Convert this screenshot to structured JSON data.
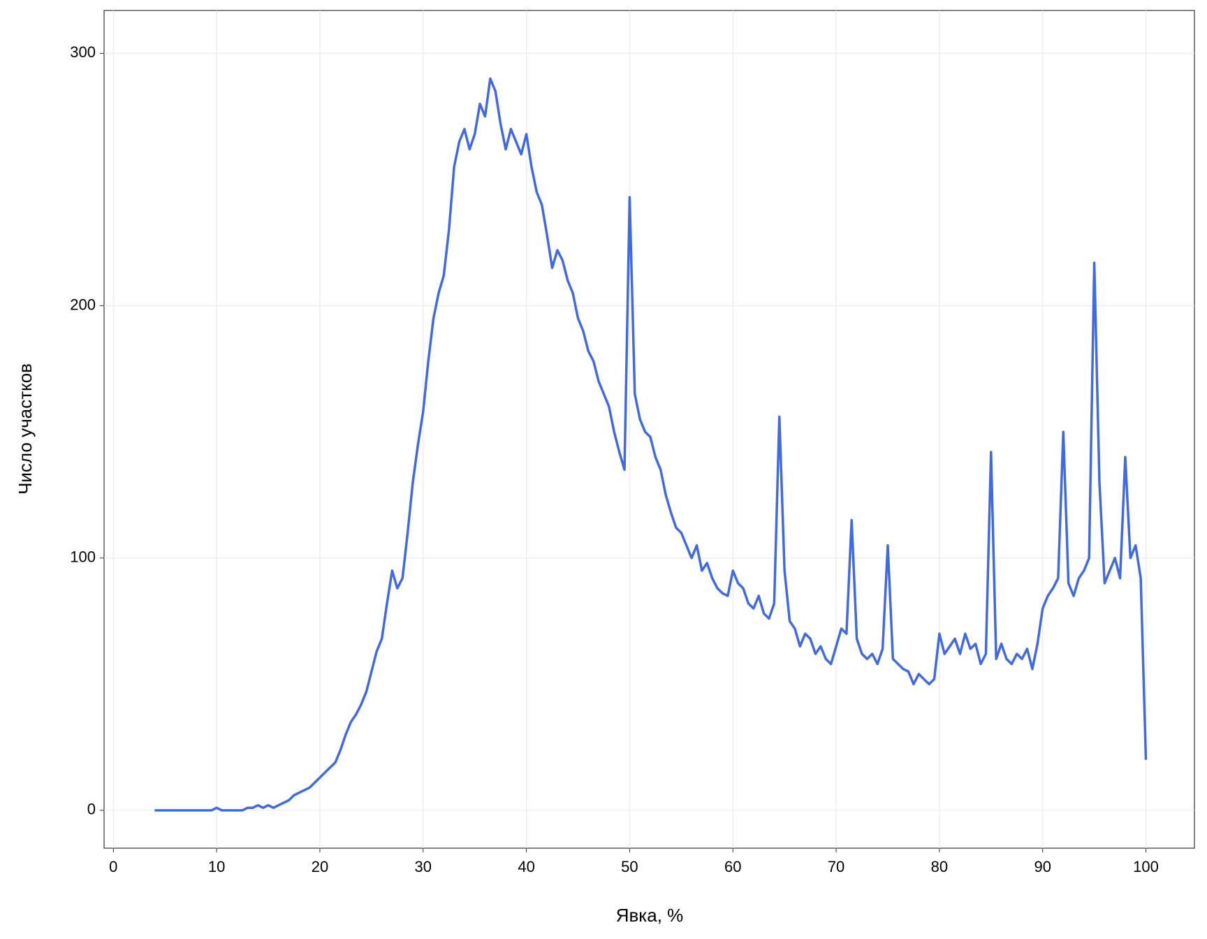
{
  "chart_data": {
    "type": "line",
    "x_label": "Явка, %",
    "y_label": "Число участков",
    "x": [
      4,
      4.5,
      5,
      5.5,
      6,
      6.5,
      7,
      7.5,
      8,
      8.5,
      9,
      9.5,
      10,
      10.5,
      11,
      11.5,
      12,
      12.5,
      13,
      13.5,
      14,
      14.5,
      15,
      15.5,
      16,
      16.5,
      17,
      17.5,
      18,
      18.5,
      19,
      19.5,
      20,
      20.5,
      21,
      21.5,
      22,
      22.5,
      23,
      23.5,
      24,
      24.5,
      25,
      25.5,
      26,
      26.5,
      27,
      27.5,
      28,
      28.5,
      29,
      29.5,
      30,
      30.5,
      31,
      31.5,
      32,
      32.5,
      33,
      33.5,
      34,
      34.5,
      35,
      35.5,
      36,
      36.5,
      37,
      37.5,
      38,
      38.5,
      39,
      39.5,
      40,
      40.5,
      41,
      41.5,
      42,
      42.5,
      43,
      43.5,
      44,
      44.5,
      45,
      45.5,
      46,
      46.5,
      47,
      47.5,
      48,
      48.5,
      49,
      49.5,
      50,
      50.5,
      51,
      51.5,
      52,
      52.5,
      53,
      53.5,
      54,
      54.5,
      55,
      55.5,
      56,
      56.5,
      57,
      57.5,
      58,
      58.5,
      59,
      59.5,
      60,
      60.5,
      61,
      61.5,
      62,
      62.5,
      63,
      63.5,
      64,
      64.5,
      65,
      65.5,
      66,
      66.5,
      67,
      67.5,
      68,
      68.5,
      69,
      69.5,
      70,
      70.5,
      71,
      71.5,
      72,
      72.5,
      73,
      73.5,
      74,
      74.5,
      75,
      75.5,
      76,
      76.5,
      77,
      77.5,
      78,
      78.5,
      79,
      79.5,
      80,
      80.5,
      81,
      81.5,
      82,
      82.5,
      83,
      83.5,
      84,
      84.5,
      85,
      85.5,
      86,
      86.5,
      87,
      87.5,
      88,
      88.5,
      89,
      89.5,
      90,
      90.5,
      91,
      91.5,
      92,
      92.5,
      93,
      93.5,
      94,
      94.5,
      95,
      95.5,
      96,
      96.5,
      97,
      97.5,
      98,
      98.5,
      99,
      99.5,
      100
    ],
    "series": [
      {
        "color": "#4169e1",
        "values": [
          0,
          0,
          0,
          0,
          0,
          0,
          0,
          0,
          0,
          0,
          0,
          0,
          1,
          0,
          0,
          0,
          0,
          0,
          1,
          1,
          2,
          1,
          2,
          1,
          2,
          3,
          4,
          6,
          7,
          8,
          9,
          11,
          13,
          15,
          17,
          19,
          24,
          30,
          35,
          38,
          42,
          47,
          55,
          63,
          68,
          82,
          95,
          88,
          92,
          110,
          130,
          145,
          158,
          178,
          195,
          205,
          212,
          230,
          255,
          265,
          270,
          262,
          268,
          280,
          275,
          290,
          285,
          272,
          262,
          270,
          265,
          260,
          268,
          255,
          245,
          240,
          228,
          215,
          222,
          218,
          210,
          205,
          195,
          190,
          182,
          178,
          170,
          165,
          160,
          150,
          142,
          135,
          243,
          165,
          155,
          150,
          148,
          140,
          135,
          125,
          118,
          112,
          110,
          105,
          100,
          105,
          95,
          98,
          92,
          88,
          86,
          85,
          95,
          90,
          88,
          82,
          80,
          85,
          78,
          76,
          82,
          156,
          95,
          75,
          72,
          65,
          70,
          68,
          62,
          65,
          60,
          58,
          65,
          72,
          70,
          115,
          68,
          62,
          60,
          62,
          58,
          64,
          105,
          60,
          58,
          56,
          55,
          50,
          54,
          52,
          50,
          52,
          70,
          62,
          65,
          68,
          62,
          70,
          64,
          66,
          58,
          62,
          142,
          60,
          66,
          60,
          58,
          62,
          60,
          64,
          56,
          66,
          80,
          85,
          88,
          92,
          150,
          90,
          85,
          92,
          95,
          100,
          217,
          130,
          90,
          95,
          100,
          92,
          140,
          100,
          105,
          92,
          20
        ]
      }
    ],
    "xlim": [
      -0.9,
      104.7
    ],
    "ylim": [
      -15,
      317
    ],
    "xticks": [
      0,
      10,
      20,
      30,
      40,
      50,
      60,
      70,
      80,
      90,
      100
    ],
    "yticks": [
      0,
      100,
      200,
      300
    ],
    "grid": true
  }
}
